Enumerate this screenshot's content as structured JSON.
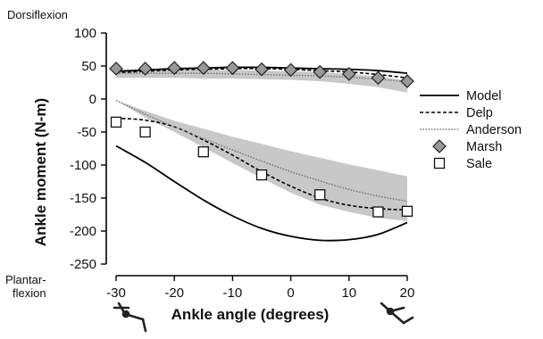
{
  "chart_data": {
    "type": "line",
    "title": "",
    "xlabel": "Ankle angle (degrees)",
    "ylabel": "Ankle moment (N-m)",
    "xlim": [
      -31,
      22
    ],
    "ylim": [
      -255,
      110
    ],
    "xticks": [
      -30,
      -20,
      -10,
      0,
      10,
      20
    ],
    "yticks": [
      100,
      50,
      0,
      -50,
      -100,
      -150,
      -200,
      -250
    ],
    "top_annotation": "Dorsiflexion",
    "bottom_annotation": [
      "Plantar-",
      "flexion"
    ],
    "legend_placement": "right",
    "grid": false,
    "series": [
      {
        "name": "Model",
        "style": "solid",
        "color": "#000000",
        "x": [
          -30,
          -25,
          -20,
          -15,
          -10,
          -5,
          0,
          5,
          10,
          15,
          20
        ],
        "y": [
          -71,
          -96,
          -125,
          -153,
          -177,
          -196,
          -208,
          -214,
          -213,
          -205,
          -187
        ]
      },
      {
        "name": "Delp",
        "style": "dashed",
        "color": "#000000",
        "x": [
          -30,
          -25,
          -20,
          -15,
          -10,
          -5,
          0,
          5,
          10,
          15,
          20
        ],
        "y": [
          -29,
          -32,
          -42,
          -62,
          -85,
          -110,
          -132,
          -150,
          -161,
          -166,
          -168
        ]
      },
      {
        "name": "Anderson",
        "style": "dotted",
        "color": "#808080",
        "x": [
          -30,
          -25,
          -20,
          -15,
          -10,
          -5,
          0,
          5,
          10,
          15,
          20
        ],
        "y": [
          -2,
          -23,
          -42,
          -60,
          -77,
          -94,
          -110,
          -124,
          -137,
          -147,
          -155
        ]
      },
      {
        "name": "Marsh",
        "style": "marker-diamond",
        "color": "#999999",
        "x": [
          -30,
          -25,
          -20,
          -15,
          -10,
          -5,
          0,
          5,
          10,
          15,
          20
        ],
        "y": [
          46,
          46,
          47,
          47,
          47,
          45,
          44,
          41,
          38,
          32,
          27
        ]
      },
      {
        "name": "Sale",
        "style": "marker-square",
        "color": "#ffffff",
        "x": [
          -30,
          -25,
          -15,
          -5,
          5,
          15,
          20
        ],
        "y": [
          -35,
          -50,
          -80,
          -115,
          -145,
          -171,
          -170
        ]
      }
    ],
    "dorsiflexion_curves": [
      {
        "style": "solid",
        "x": [
          -30,
          -25,
          -20,
          -15,
          -10,
          -5,
          0,
          5,
          10,
          15,
          20
        ],
        "y": [
          42,
          44,
          46,
          47,
          48,
          48,
          47,
          46,
          45,
          43,
          39
        ]
      },
      {
        "style": "dashed",
        "x": [
          -30,
          -25,
          -20,
          -15,
          -10,
          -5,
          0,
          5,
          10,
          15,
          20
        ],
        "y": [
          40,
          42,
          44,
          45,
          46,
          46,
          45,
          43,
          41,
          37,
          32
        ]
      },
      {
        "style": "dotted",
        "x": [
          -30,
          -25,
          -20,
          -15,
          -10,
          -5,
          0,
          5,
          10,
          15,
          20
        ],
        "y": [
          39,
          39,
          39,
          39,
          38,
          37,
          36,
          35,
          33,
          30,
          26
        ]
      }
    ],
    "bands": [
      {
        "x": [
          -30,
          -25,
          -20,
          -15,
          -10,
          -5,
          0,
          5,
          10,
          15,
          20
        ],
        "upper": [
          44,
          44,
          44,
          44,
          44,
          43,
          42,
          41,
          38,
          34,
          28
        ],
        "lower": [
          32,
          32,
          32,
          31,
          31,
          30,
          29,
          27,
          23,
          18,
          10
        ]
      },
      {
        "x": [
          -30,
          -25,
          -20,
          -15,
          -10,
          -5,
          0,
          5,
          10,
          15,
          20
        ],
        "upper": [
          -2,
          -18,
          -33,
          -45,
          -57,
          -68,
          -79,
          -89,
          -99,
          -108,
          -117
        ],
        "lower": [
          -2,
          -28,
          -50,
          -73,
          -97,
          -120,
          -142,
          -160,
          -171,
          -180,
          -185
        ]
      }
    ]
  }
}
